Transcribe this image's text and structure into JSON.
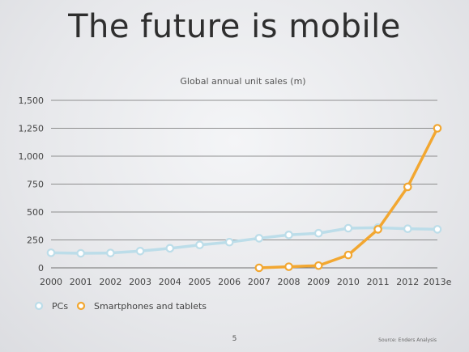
{
  "slide": {
    "title": "The future is mobile",
    "page_number": "5",
    "source": "Source: Enders Analysis"
  },
  "colors": {
    "pcs": "#bcdde9",
    "smartphones": "#f2a731",
    "grid": "#6f6f6f",
    "marker_fill": "#ffffff"
  },
  "chart_data": {
    "type": "line",
    "title": "Global annual unit sales (m)",
    "xlabel": "",
    "ylabel": "",
    "categories": [
      "2000",
      "2001",
      "2002",
      "2003",
      "2004",
      "2005",
      "2006",
      "2007",
      "2008",
      "2009",
      "2010",
      "2011",
      "2012",
      "2013e"
    ],
    "ylim": [
      0,
      1500
    ],
    "yticks": [
      0,
      250,
      500,
      750,
      1000,
      1250,
      1500
    ],
    "ytick_labels": [
      "0",
      "250",
      "500",
      "750",
      "1,000",
      "1,250",
      "1,500"
    ],
    "grid": true,
    "legend_position": "bottom-left",
    "series": [
      {
        "name": "PCs",
        "color": "#bcdde9",
        "values": [
          135,
          130,
          133,
          150,
          175,
          205,
          230,
          265,
          295,
          310,
          355,
          360,
          350,
          345
        ]
      },
      {
        "name": "Smartphones and tablets",
        "color": "#f2a731",
        "values": [
          null,
          null,
          null,
          null,
          null,
          null,
          null,
          0,
          10,
          20,
          115,
          345,
          725,
          1250
        ]
      }
    ]
  }
}
